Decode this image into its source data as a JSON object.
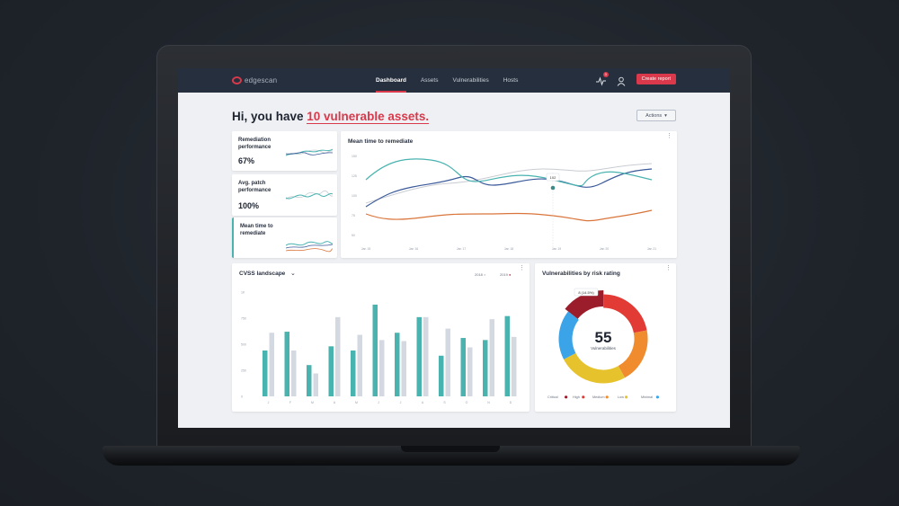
{
  "app": {
    "logo_text": "edgescan"
  },
  "nav": {
    "items": [
      {
        "label": "Dashboard",
        "active": true
      },
      {
        "label": "Assets",
        "active": false
      },
      {
        "label": "Vulnerabilities",
        "active": false
      },
      {
        "label": "Hosts",
        "active": false
      }
    ],
    "notification_count": "3",
    "create_report_label": "Create report"
  },
  "greeting": {
    "prefix": "Hi, you have ",
    "highlight": "10 vulnerable assets."
  },
  "actions_label": "Actions",
  "kpis": [
    {
      "title_line1": "Remediation",
      "title_line2": "performance",
      "value": "67%"
    },
    {
      "title_line1": "Avg. patch",
      "title_line2": "performance",
      "value": "100%"
    },
    {
      "title_line1": "Mean time to",
      "title_line2": "remediate",
      "value": ""
    }
  ],
  "mttr_chart": {
    "title": "Mean time to remediate",
    "tooltip": "102",
    "y_ticks": [
      "150",
      "125",
      "100",
      "75",
      "50"
    ],
    "x_ticks": [
      "Jan 15",
      "Jan 16",
      "Jan 17",
      "Jan 18",
      "Jan 19",
      "Jan 20",
      "Jan 21"
    ],
    "colors": {
      "teal": "#49b3b0",
      "navy": "#3b5a9a",
      "orange": "#d9753b",
      "gray": "#c8ccd2"
    }
  },
  "cvss_chart": {
    "title": "CVSS landscape",
    "legend": [
      {
        "label": "2018",
        "color": "#c9ced8"
      },
      {
        "label": "2019",
        "color": "#d9394b"
      }
    ],
    "y_ticks": [
      "1K",
      "750",
      "500",
      "250",
      "0"
    ],
    "x_ticks": [
      "J",
      "F",
      "M",
      "A",
      "M",
      "J",
      "J",
      "A",
      "S",
      "O",
      "N",
      "D"
    ]
  },
  "chart_data": {
    "type": "bar",
    "title": "CVSS landscape",
    "categories": [
      "J",
      "F",
      "M",
      "A",
      "M",
      "J",
      "J",
      "A",
      "S",
      "O",
      "N",
      "D"
    ],
    "series": [
      {
        "name": "2018",
        "values": [
          440,
          620,
          300,
          480,
          440,
          880,
          610,
          760,
          390,
          560,
          540,
          770
        ],
        "color": "#49b3b0"
      },
      {
        "name": "2019",
        "values": [
          610,
          440,
          220,
          760,
          590,
          540,
          530,
          760,
          650,
          470,
          740,
          570
        ],
        "color": "#d4d9e1"
      }
    ],
    "ylim": [
      0,
      1000
    ]
  },
  "risk_chart": {
    "title": "Vulnerabilities by risk rating",
    "total": "55",
    "total_label": "Vulnerabilities",
    "tooltip": "8 (14.5%)",
    "segments": [
      {
        "label": "Critical",
        "value": 8,
        "color": "#9b1c2a"
      },
      {
        "label": "High",
        "value": 12,
        "color": "#e23a34"
      },
      {
        "label": "Medium",
        "value": 11,
        "color": "#f08b2e"
      },
      {
        "label": "Low",
        "value": 14,
        "color": "#e6c32c"
      },
      {
        "label": "Minimal",
        "value": 10,
        "color": "#3ba3e8"
      }
    ]
  }
}
